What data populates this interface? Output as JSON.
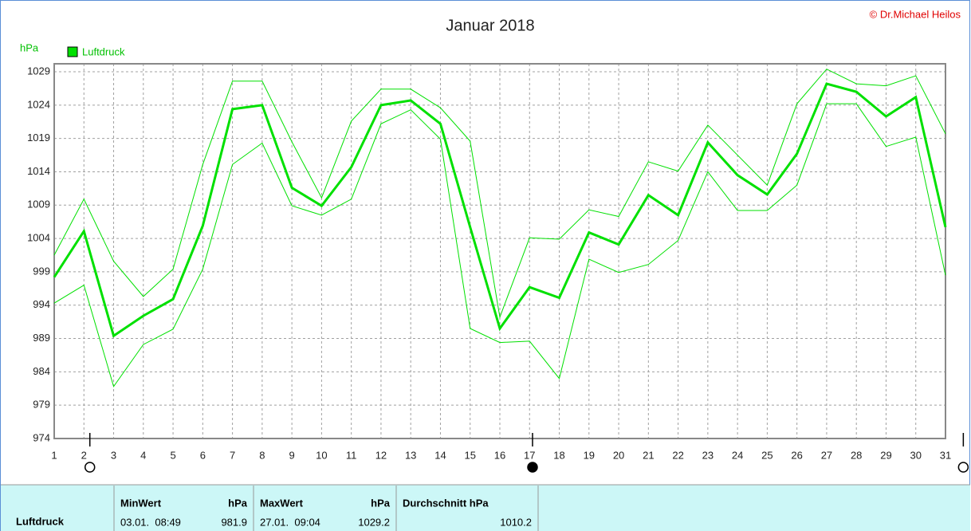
{
  "chart_data": {
    "type": "line",
    "title": "Januar 2018",
    "copyright": "© Dr.Michael Heilos",
    "ylabel": "hPa",
    "x": [
      1,
      2,
      3,
      4,
      5,
      6,
      7,
      8,
      9,
      10,
      11,
      12,
      13,
      14,
      15,
      16,
      17,
      18,
      19,
      20,
      21,
      22,
      23,
      24,
      25,
      26,
      27,
      28,
      29,
      30,
      31
    ],
    "xlim": [
      1,
      31
    ],
    "xticks": [
      1,
      2,
      3,
      4,
      5,
      6,
      7,
      8,
      9,
      10,
      11,
      12,
      13,
      14,
      15,
      16,
      17,
      18,
      19,
      20,
      21,
      22,
      23,
      24,
      25,
      26,
      27,
      28,
      29,
      30,
      31
    ],
    "ylim": [
      974,
      1030.2
    ],
    "yticks": [
      974,
      979,
      984,
      989,
      994,
      999,
      1004,
      1009,
      1014,
      1019,
      1024,
      1029
    ],
    "grid": true,
    "series": [
      {
        "name": "Luftdruck",
        "color": "#00e000",
        "values": [
          998.2,
          1005.1,
          989.4,
          992.4,
          994.9,
          1005.9,
          1023.4,
          1024.0,
          1011.6,
          1008.9,
          1014.7,
          1024.0,
          1024.7,
          1021.2,
          1005.7,
          990.5,
          996.7,
          995.1,
          1004.9,
          1003.1,
          1010.5,
          1007.5,
          1018.4,
          1013.5,
          1010.6,
          1016.7,
          1027.2,
          1026.0,
          1022.3,
          1025.2,
          1005.7
        ]
      },
      {
        "color": "#00e000",
        "values": [
          1001.5,
          1009.9,
          1000.6,
          995.3,
          999.4,
          1015.1,
          1027.6,
          1027.6,
          1018.5,
          1010.1,
          1021.6,
          1026.4,
          1026.4,
          1023.6,
          1018.6,
          992.2,
          1004.1,
          1003.9,
          1008.3,
          1007.3,
          1015.5,
          1014.1,
          1021.0,
          1016.5,
          1012.0,
          1024.2,
          1029.4,
          1027.2,
          1026.9,
          1028.4,
          1019.7
        ]
      },
      {
        "color": "#00e000",
        "values": [
          994.3,
          997.0,
          981.8,
          988.1,
          990.4,
          999.4,
          1015.1,
          1018.3,
          1008.9,
          1007.5,
          1009.9,
          1021.2,
          1023.3,
          1018.9,
          990.5,
          988.4,
          988.6,
          983.0,
          1000.9,
          998.9,
          1000.1,
          1003.7,
          1014.0,
          1008.2,
          1008.2,
          1012.0,
          1024.2,
          1024.2,
          1017.8,
          1019.2,
          998.5
        ]
      }
    ],
    "moon_markers": [
      {
        "x": 2.2,
        "filled": false
      },
      {
        "x": 17.1,
        "filled": true
      },
      {
        "x": 31.6,
        "filled": false
      }
    ]
  },
  "stats": {
    "row_label": "Luftdruck",
    "columns": [
      {
        "header": "MinWert",
        "unit": "hPa",
        "time": "03.01.  08:49",
        "value": "981.9"
      },
      {
        "header": "MaxWert",
        "unit": "hPa",
        "time": "27.01.  09:04",
        "value": "1029.2"
      },
      {
        "header": "Durchschnitt  hPa",
        "value": "1010.2"
      }
    ]
  }
}
